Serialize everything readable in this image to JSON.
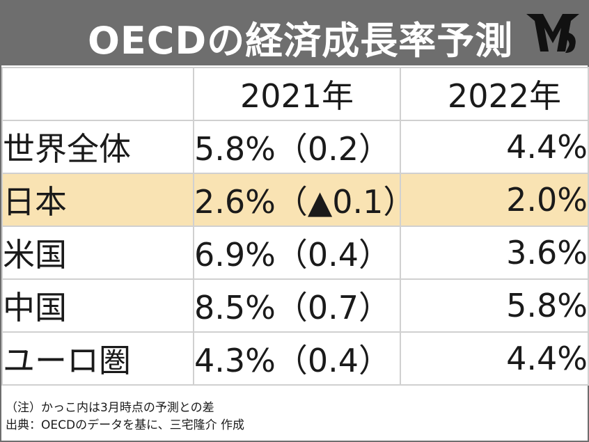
{
  "title": "OECDの経済成長率予測",
  "logo_label": "",
  "colors": {
    "title_bar": "#6e6e6e",
    "title_text": "#ffffff",
    "highlight_row": "#f9e3b3",
    "grid_line": "#d0d0d0",
    "logo": "#111111"
  },
  "columns": [
    "",
    "2021年",
    "2022年"
  ],
  "rows": [
    {
      "region": "世界全体",
      "v2021": "5.8%（0.2）",
      "v2022": "4.4%"
    },
    {
      "region": "日本",
      "v2021": "2.6%（▲0.1）",
      "v2022": "2.0%"
    },
    {
      "region": "米国",
      "v2021": "6.9%（0.4）",
      "v2022": "3.6%"
    },
    {
      "region": "中国",
      "v2021": "8.5%（0.7）",
      "v2022": "5.8%"
    },
    {
      "region": "ユーロ圏",
      "v2021": "4.3%（0.4）",
      "v2022": "4.4%"
    }
  ],
  "highlighted_row": "日本",
  "notes": [
    "（注）かっこ内は3月時点の予測との差",
    "出典：OECDのデータを基に、三宅隆介 作成"
  ],
  "chart_data": {
    "type": "table",
    "title": "OECDの経済成長率予測",
    "columns": [
      "2021年",
      "2022年"
    ],
    "categories": [
      "世界全体",
      "日本",
      "米国",
      "中国",
      "ユーロ圏"
    ],
    "series": [
      {
        "name": "2021年",
        "values": [
          5.8,
          2.6,
          6.9,
          8.5,
          4.3
        ]
      },
      {
        "name": "2022年",
        "values": [
          4.4,
          2.0,
          3.6,
          5.8,
          4.4
        ]
      }
    ],
    "revision_vs_march_2021": [
      0.2,
      -0.1,
      0.4,
      0.7,
      0.4
    ],
    "unit": "%"
  }
}
